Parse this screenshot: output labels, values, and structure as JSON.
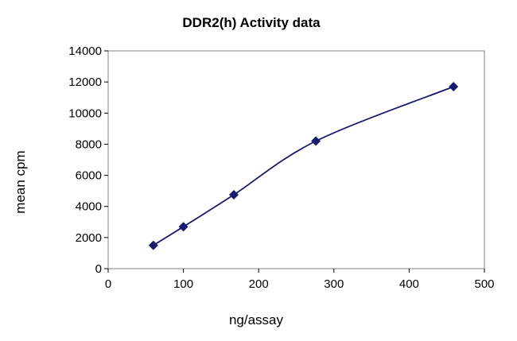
{
  "chart_data": {
    "type": "line",
    "title": "DDR2(h) Activity data",
    "xlabel": "ng/assay",
    "ylabel": "mean cpm",
    "xlim": [
      0,
      500
    ],
    "ylim": [
      0,
      14000
    ],
    "x_ticks": [
      "0",
      "100",
      "200",
      "300",
      "400",
      "500"
    ],
    "y_ticks": [
      "0",
      "2000",
      "4000",
      "6000",
      "8000",
      "10000",
      "12000",
      "14000"
    ],
    "grid": false,
    "legend": "none",
    "series": [
      {
        "x": [
          60,
          100,
          167,
          276,
          459
        ],
        "y": [
          1500,
          2700,
          4750,
          8200,
          11700
        ],
        "color": "#1a1a6e",
        "marker": "diamond",
        "smooth": true
      }
    ]
  }
}
